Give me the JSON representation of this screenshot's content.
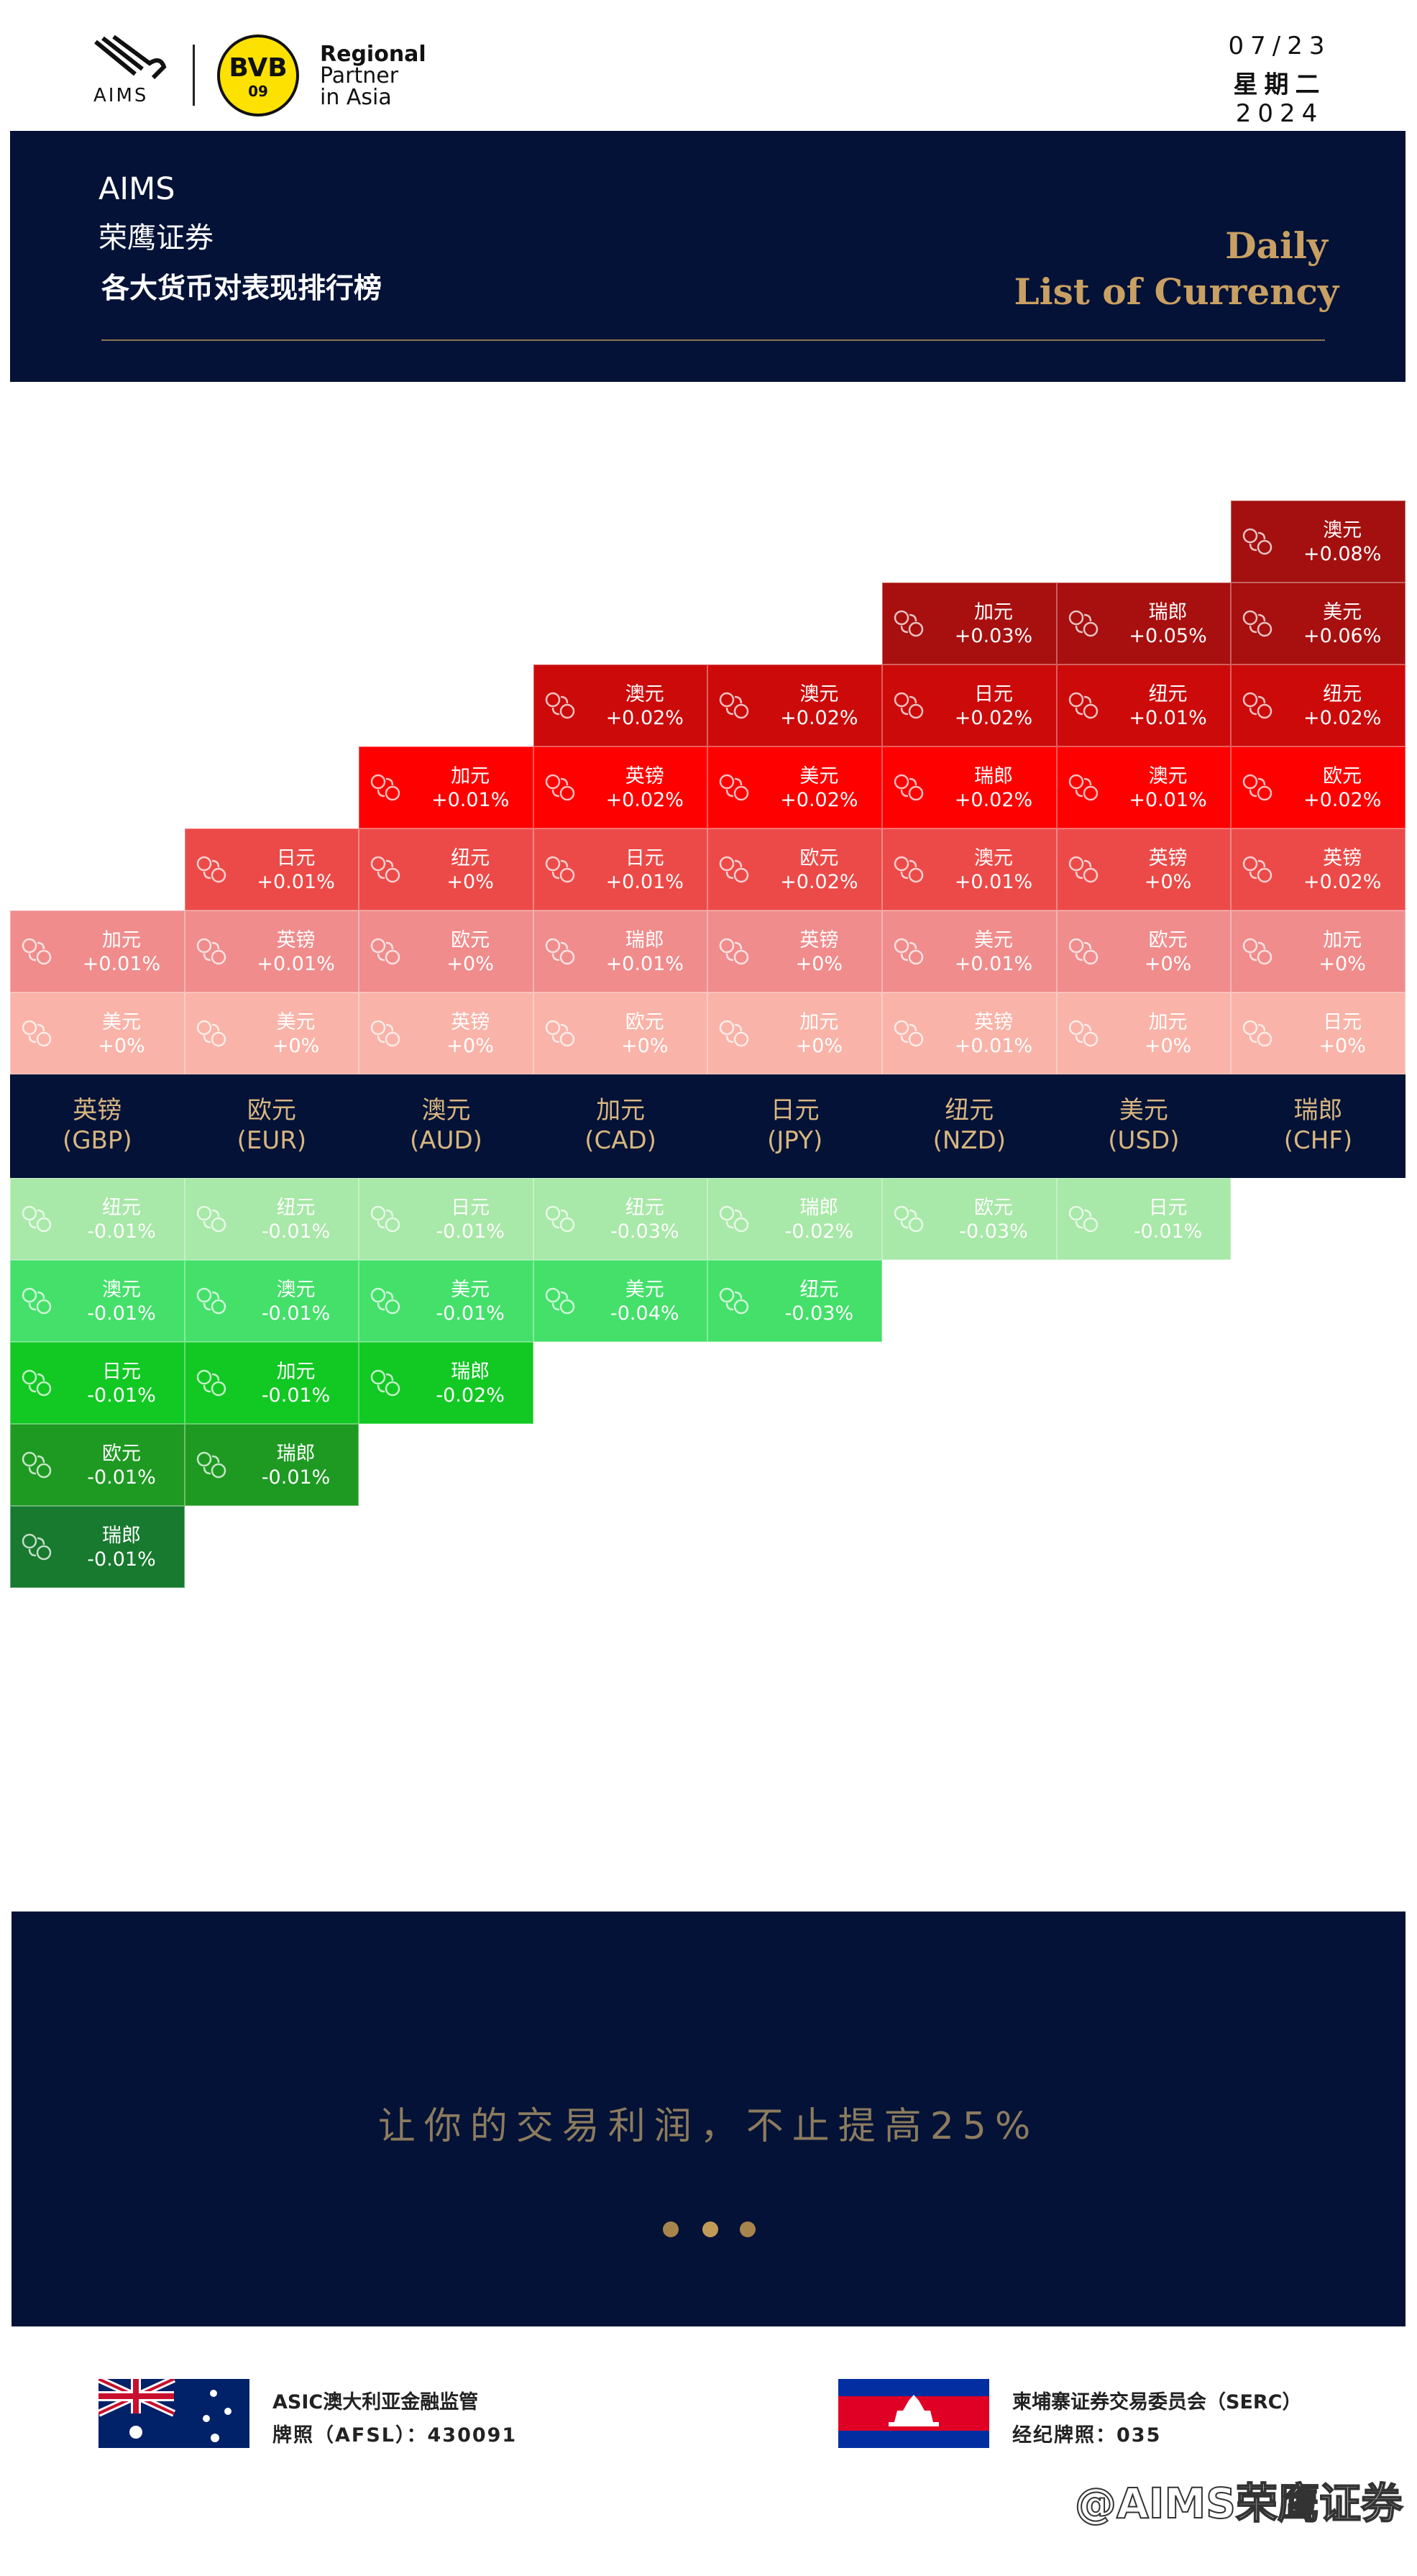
{
  "header": {
    "logo_text": "AIMS",
    "badge": {
      "top": "BVB",
      "bottom": "09"
    },
    "partner": [
      "Regional",
      "Partner",
      "in Asia"
    ],
    "date": "07/23",
    "weekday": "星期二",
    "year": "2024",
    "brand": "AIMS",
    "company": "荣鹰证券",
    "subtitle": "各大货币对表现排行榜",
    "title": [
      "Daily",
      "List of Currency"
    ]
  },
  "table": {
    "columns": [
      {
        "name": "英镑",
        "code": "(GBP)",
        "gains": [
          {
            "label": "美元",
            "value": "+0%"
          },
          {
            "label": "加元",
            "value": "+0.01%"
          }
        ],
        "losses": [
          {
            "label": "纽元",
            "value": "-0.01%"
          },
          {
            "label": "澳元",
            "value": "-0.01%"
          },
          {
            "label": "日元",
            "value": "-0.01%"
          },
          {
            "label": "欧元",
            "value": "-0.01%"
          },
          {
            "label": "瑞郎",
            "value": "-0.01%"
          }
        ]
      },
      {
        "name": "欧元",
        "code": "(EUR)",
        "gains": [
          {
            "label": "美元",
            "value": "+0%"
          },
          {
            "label": "英镑",
            "value": "+0.01%"
          },
          {
            "label": "日元",
            "value": "+0.01%"
          }
        ],
        "losses": [
          {
            "label": "纽元",
            "value": "-0.01%"
          },
          {
            "label": "澳元",
            "value": "-0.01%"
          },
          {
            "label": "加元",
            "value": "-0.01%"
          },
          {
            "label": "瑞郎",
            "value": "-0.01%"
          }
        ]
      },
      {
        "name": "澳元",
        "code": "(AUD)",
        "gains": [
          {
            "label": "英镑",
            "value": "+0%"
          },
          {
            "label": "欧元",
            "value": "+0%"
          },
          {
            "label": "纽元",
            "value": "+0%"
          },
          {
            "label": "加元",
            "value": "+0.01%"
          }
        ],
        "losses": [
          {
            "label": "日元",
            "value": "-0.01%"
          },
          {
            "label": "美元",
            "value": "-0.01%"
          },
          {
            "label": "瑞郎",
            "value": "-0.02%"
          }
        ]
      },
      {
        "name": "加元",
        "code": "(CAD)",
        "gains": [
          {
            "label": "欧元",
            "value": "+0%"
          },
          {
            "label": "瑞郎",
            "value": "+0.01%"
          },
          {
            "label": "日元",
            "value": "+0.01%"
          },
          {
            "label": "英镑",
            "value": "+0.02%"
          },
          {
            "label": "澳元",
            "value": "+0.02%"
          }
        ],
        "losses": [
          {
            "label": "纽元",
            "value": "-0.03%"
          },
          {
            "label": "美元",
            "value": "-0.04%"
          }
        ]
      },
      {
        "name": "日元",
        "code": "(JPY)",
        "gains": [
          {
            "label": "加元",
            "value": "+0%"
          },
          {
            "label": "英镑",
            "value": "+0%"
          },
          {
            "label": "欧元",
            "value": "+0.02%"
          },
          {
            "label": "美元",
            "value": "+0.02%"
          },
          {
            "label": "澳元",
            "value": "+0.02%"
          }
        ],
        "losses": [
          {
            "label": "瑞郎",
            "value": "-0.02%"
          },
          {
            "label": "纽元",
            "value": "-0.03%"
          }
        ]
      },
      {
        "name": "纽元",
        "code": "(NZD)",
        "gains": [
          {
            "label": "英镑",
            "value": "+0.01%"
          },
          {
            "label": "美元",
            "value": "+0.01%"
          },
          {
            "label": "澳元",
            "value": "+0.01%"
          },
          {
            "label": "瑞郎",
            "value": "+0.02%"
          },
          {
            "label": "日元",
            "value": "+0.02%"
          },
          {
            "label": "加元",
            "value": "+0.03%"
          }
        ],
        "losses": [
          {
            "label": "欧元",
            "value": "-0.03%"
          }
        ]
      },
      {
        "name": "美元",
        "code": "(USD)",
        "gains": [
          {
            "label": "加元",
            "value": "+0%"
          },
          {
            "label": "欧元",
            "value": "+0%"
          },
          {
            "label": "英镑",
            "value": "+0%"
          },
          {
            "label": "澳元",
            "value": "+0.01%"
          },
          {
            "label": "纽元",
            "value": "+0.01%"
          },
          {
            "label": "瑞郎",
            "value": "+0.05%"
          }
        ],
        "losses": [
          {
            "label": "日元",
            "value": "-0.01%"
          }
        ]
      },
      {
        "name": "瑞郎",
        "code": "(CHF)",
        "gains": [
          {
            "label": "日元",
            "value": "+0%"
          },
          {
            "label": "加元",
            "value": "+0%"
          },
          {
            "label": "英镑",
            "value": "+0.02%"
          },
          {
            "label": "欧元",
            "value": "+0.02%"
          },
          {
            "label": "纽元",
            "value": "+0.02%"
          },
          {
            "label": "美元",
            "value": "+0.06%"
          },
          {
            "label": "澳元",
            "value": "+0.08%"
          }
        ],
        "losses": []
      }
    ]
  },
  "banner": {
    "slogan": "让你的交易利润，不止提高25%"
  },
  "footer": {
    "regulators": [
      {
        "name": "ASIC澳大利亚金融监管",
        "license": "牌照（AFSL）：430091"
      },
      {
        "name": "柬埔寨证券交易委员会（SERC）",
        "license": "经纪牌照：035"
      }
    ],
    "watermark": "@AIMS荣鹰证券"
  }
}
